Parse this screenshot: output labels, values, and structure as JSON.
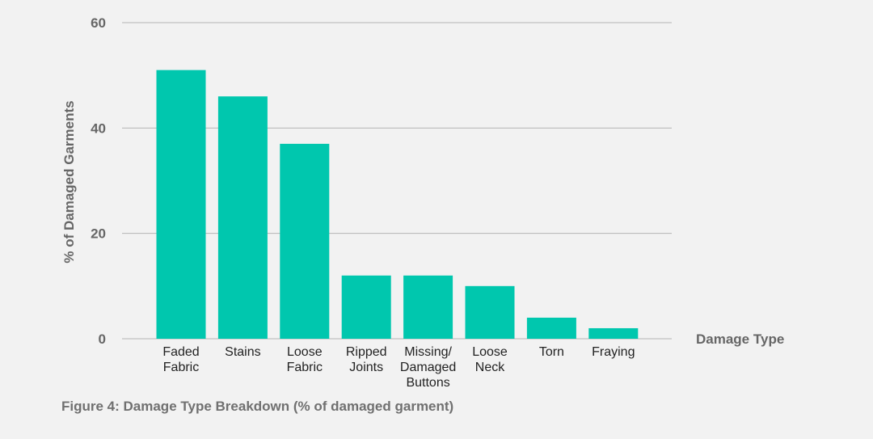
{
  "caption": "Figure 4: Damage Type Breakdown (% of damaged garment)",
  "colors": {
    "bar": "#00c7ae",
    "grid": "#b4b4b4",
    "axis_text": "#666666",
    "tick_text": "#222222",
    "background": "#f2f2f2"
  },
  "chart_data": {
    "type": "bar",
    "title": "",
    "xlabel": "Damage Type",
    "ylabel": "% of Damaged Garments",
    "ylim": [
      0,
      60
    ],
    "yticks": [
      0,
      20,
      40,
      60
    ],
    "grid": true,
    "categories": [
      [
        "Faded",
        "Fabric"
      ],
      [
        "Stains"
      ],
      [
        "Loose",
        "Fabric"
      ],
      [
        "Ripped",
        "Joints"
      ],
      [
        "Missing/",
        "Damaged",
        "Buttons"
      ],
      [
        "Loose",
        "Neck"
      ],
      [
        "Torn"
      ],
      [
        "Fraying"
      ]
    ],
    "values": [
      51,
      46,
      37,
      12,
      12,
      10,
      4,
      2
    ]
  }
}
